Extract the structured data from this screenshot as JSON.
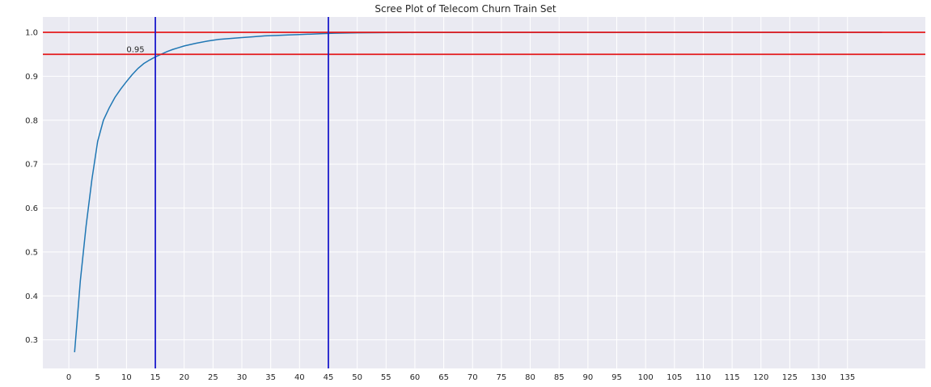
{
  "chart_data": {
    "type": "line",
    "title": "Scree Plot of Telecom Churn Train Set",
    "xlabel": "",
    "ylabel": "",
    "xlim": [
      -4.5,
      148.5
    ],
    "ylim": [
      0.235,
      1.035
    ],
    "x_ticks": [
      0,
      5,
      10,
      15,
      20,
      25,
      30,
      35,
      40,
      45,
      50,
      55,
      60,
      65,
      70,
      75,
      80,
      85,
      90,
      95,
      100,
      105,
      110,
      115,
      120,
      125,
      130,
      135
    ],
    "y_ticks": [
      0.3,
      0.4,
      0.5,
      0.6,
      0.7,
      0.8,
      0.9,
      1.0
    ],
    "y_tick_labels": [
      "0.3",
      "0.4",
      "0.5",
      "0.6",
      "0.7",
      "0.8",
      "0.9",
      "1.0"
    ],
    "grid": true,
    "background_color": "#eaeaf2",
    "series": [
      {
        "color": "#1f77b4",
        "x": [
          1,
          2,
          3,
          4,
          5,
          6,
          7,
          8,
          9,
          10,
          11,
          12,
          13,
          14,
          15,
          16,
          17,
          18,
          19,
          20,
          22,
          24,
          26,
          28,
          30,
          32,
          34,
          36,
          38,
          40,
          42,
          44,
          46,
          48,
          50,
          55,
          60,
          70,
          80,
          90,
          100,
          110,
          120,
          130,
          141
        ],
        "y": [
          0.272,
          0.435,
          0.56,
          0.665,
          0.752,
          0.8,
          0.828,
          0.852,
          0.871,
          0.888,
          0.904,
          0.918,
          0.929,
          0.937,
          0.944,
          0.95,
          0.956,
          0.961,
          0.965,
          0.969,
          0.975,
          0.98,
          0.984,
          0.986,
          0.988,
          0.99,
          0.992,
          0.993,
          0.994,
          0.995,
          0.996,
          0.997,
          0.998,
          0.9985,
          0.999,
          0.9993,
          0.9995,
          0.9997,
          0.9998,
          0.9999,
          0.99995,
          1.0,
          1.0,
          1.0,
          1.0
        ]
      }
    ],
    "hlines": [
      {
        "y": 1.0,
        "color": "#e41a1c"
      },
      {
        "y": 0.95,
        "color": "#e41a1c"
      }
    ],
    "vlines": [
      {
        "x": 15,
        "color": "#1a1acc"
      },
      {
        "x": 45,
        "color": "#1a1acc"
      }
    ],
    "annotations": [
      {
        "text": "0.95",
        "x": 10,
        "y": 0.955
      }
    ]
  }
}
